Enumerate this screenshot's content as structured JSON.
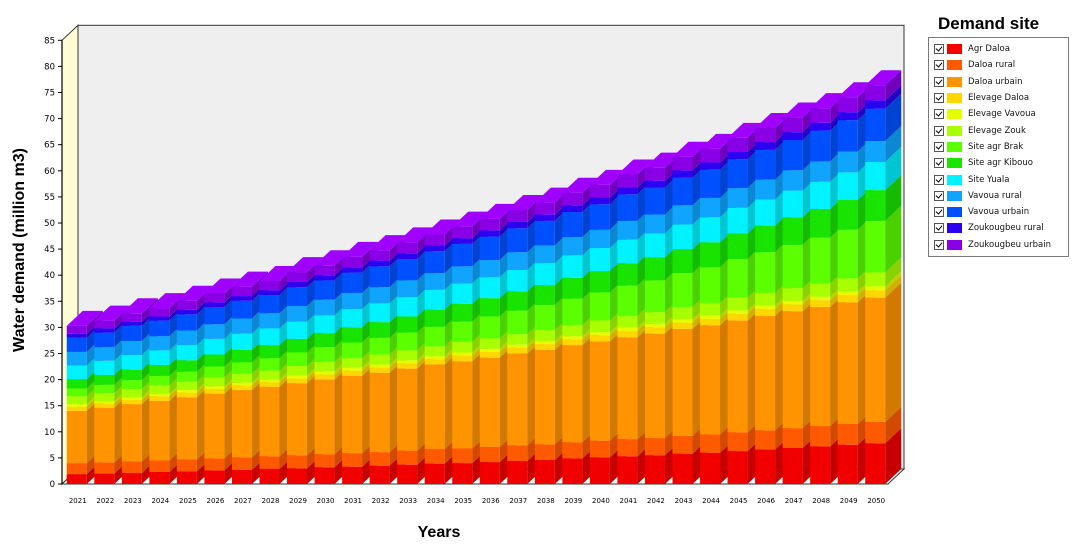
{
  "chart_data": {
    "type": "bar",
    "stacked": true,
    "three_d": true,
    "title": "",
    "xlabel": "Years",
    "ylabel": "Water demand (million m3)",
    "ylim": [
      0,
      85
    ],
    "yticks": [
      0,
      5,
      10,
      15,
      20,
      25,
      30,
      35,
      40,
      45,
      50,
      55,
      60,
      65,
      70,
      75,
      80,
      85
    ],
    "grid": false,
    "legend_title": "Demand site",
    "legend_position": "right",
    "categories": [
      "2021",
      "2022",
      "2023",
      "2024",
      "2025",
      "2026",
      "2027",
      "2028",
      "2029",
      "2030",
      "2031",
      "2032",
      "2033",
      "2034",
      "2035",
      "2036",
      "2037",
      "2038",
      "2039",
      "2040",
      "2041",
      "2042",
      "2043",
      "2044",
      "2045",
      "2046",
      "2047",
      "2048",
      "2049",
      "2050"
    ],
    "series": [
      {
        "name": "Agr Daloa",
        "color": "#f20000",
        "values": [
          1.9,
          2.0,
          2.1,
          2.3,
          2.4,
          2.6,
          2.7,
          2.9,
          3.0,
          3.2,
          3.3,
          3.5,
          3.7,
          3.9,
          4.0,
          4.2,
          4.4,
          4.6,
          4.9,
          5.1,
          5.3,
          5.5,
          5.8,
          6.0,
          6.3,
          6.6,
          6.9,
          7.2,
          7.5,
          7.8
        ]
      },
      {
        "name": "Daloa rural",
        "color": "#ff5a00",
        "values": [
          2.1,
          2.1,
          2.2,
          2.2,
          2.3,
          2.3,
          2.4,
          2.4,
          2.5,
          2.5,
          2.6,
          2.6,
          2.7,
          2.8,
          2.8,
          2.9,
          3.0,
          3.0,
          3.1,
          3.2,
          3.3,
          3.3,
          3.4,
          3.5,
          3.6,
          3.7,
          3.8,
          3.9,
          4.0,
          4.1
        ]
      },
      {
        "name": "Daloa urbain",
        "color": "#ff9400",
        "values": [
          10.0,
          10.5,
          11.0,
          11.4,
          11.9,
          12.4,
          12.9,
          13.3,
          13.8,
          14.3,
          14.8,
          15.2,
          15.7,
          16.2,
          16.7,
          17.1,
          17.6,
          18.1,
          18.6,
          19.0,
          19.5,
          20.0,
          20.5,
          20.9,
          21.4,
          21.9,
          22.4,
          22.8,
          23.3,
          23.8
        ]
      },
      {
        "name": "Elevage Daloa",
        "color": "#ffd700",
        "values": [
          0.8,
          0.8,
          0.8,
          0.9,
          0.9,
          0.9,
          0.9,
          0.9,
          0.9,
          1.0,
          1.0,
          1.0,
          1.0,
          1.0,
          1.1,
          1.1,
          1.1,
          1.1,
          1.1,
          1.2,
          1.2,
          1.2,
          1.2,
          1.2,
          1.3,
          1.3,
          1.3,
          1.3,
          1.4,
          1.4
        ]
      },
      {
        "name": "Elevage Vavoua",
        "color": "#e4ff00",
        "values": [
          0.5,
          0.5,
          0.5,
          0.5,
          0.5,
          0.5,
          0.5,
          0.5,
          0.6,
          0.6,
          0.6,
          0.6,
          0.6,
          0.6,
          0.6,
          0.6,
          0.6,
          0.6,
          0.6,
          0.6,
          0.7,
          0.7,
          0.7,
          0.7,
          0.7,
          0.7,
          0.7,
          0.7,
          0.7,
          0.8
        ]
      },
      {
        "name": "Elevage Zouk",
        "color": "#a8ff00",
        "values": [
          1.5,
          1.5,
          1.6,
          1.6,
          1.6,
          1.7,
          1.7,
          1.7,
          1.8,
          1.8,
          1.8,
          1.9,
          1.9,
          1.9,
          2.0,
          2.0,
          2.0,
          2.1,
          2.1,
          2.2,
          2.2,
          2.2,
          2.3,
          2.3,
          2.4,
          2.4,
          2.4,
          2.5,
          2.5,
          2.6
        ]
      },
      {
        "name": "Site agr Brak",
        "color": "#5cff00",
        "values": [
          1.5,
          1.6,
          1.7,
          1.8,
          1.9,
          2.1,
          2.2,
          2.4,
          2.6,
          2.8,
          3.0,
          3.2,
          3.4,
          3.7,
          3.9,
          4.2,
          4.5,
          4.8,
          5.1,
          5.4,
          5.8,
          6.1,
          6.5,
          6.9,
          7.4,
          7.8,
          8.3,
          8.8,
          9.3,
          9.9
        ]
      },
      {
        "name": "Site agr Kibouo",
        "color": "#18e400",
        "values": [
          1.8,
          1.9,
          2.0,
          2.1,
          2.2,
          2.3,
          2.4,
          2.5,
          2.6,
          2.7,
          2.9,
          3.0,
          3.1,
          3.3,
          3.4,
          3.5,
          3.7,
          3.8,
          4.0,
          4.1,
          4.3,
          4.4,
          4.6,
          4.8,
          4.9,
          5.1,
          5.3,
          5.5,
          5.7,
          5.9
        ]
      },
      {
        "name": "Site Yuala",
        "color": "#00f2ff",
        "values": [
          2.6,
          2.7,
          2.8,
          2.8,
          2.9,
          3.0,
          3.1,
          3.2,
          3.3,
          3.4,
          3.5,
          3.6,
          3.7,
          3.8,
          3.9,
          4.0,
          4.1,
          4.2,
          4.3,
          4.4,
          4.5,
          4.6,
          4.7,
          4.8,
          4.9,
          5.0,
          5.1,
          5.2,
          5.3,
          5.4
        ]
      },
      {
        "name": "Vavoua rural",
        "color": "#0fa5ff",
        "values": [
          2.6,
          2.6,
          2.7,
          2.7,
          2.8,
          2.8,
          2.9,
          2.9,
          3.0,
          3.0,
          3.1,
          3.1,
          3.2,
          3.2,
          3.3,
          3.3,
          3.4,
          3.4,
          3.5,
          3.5,
          3.6,
          3.6,
          3.7,
          3.7,
          3.8,
          3.8,
          3.9,
          3.9,
          4.0,
          4.0
        ]
      },
      {
        "name": "Vavoua urbain",
        "color": "#0050ff",
        "values": [
          2.7,
          2.8,
          2.9,
          3.0,
          3.1,
          3.3,
          3.4,
          3.5,
          3.6,
          3.7,
          3.9,
          4.0,
          4.1,
          4.2,
          4.3,
          4.5,
          4.6,
          4.7,
          4.8,
          4.9,
          5.1,
          5.2,
          5.3,
          5.4,
          5.5,
          5.7,
          5.8,
          5.9,
          6.0,
          6.2
        ]
      },
      {
        "name": "Zoukougbeu rural",
        "color": "#2c00f0",
        "values": [
          0.8,
          0.8,
          0.8,
          0.8,
          0.9,
          0.9,
          0.9,
          0.9,
          1.0,
          1.0,
          1.0,
          1.1,
          1.1,
          1.1,
          1.1,
          1.2,
          1.2,
          1.2,
          1.3,
          1.3,
          1.3,
          1.3,
          1.4,
          1.4,
          1.4,
          1.5,
          1.5,
          1.5,
          1.5,
          1.6
        ]
      },
      {
        "name": "Zoukougbeu urbain",
        "color": "#8a00e6",
        "values": [
          1.5,
          1.5,
          1.6,
          1.6,
          1.7,
          1.7,
          1.8,
          1.8,
          1.9,
          1.9,
          2.0,
          2.0,
          2.1,
          2.1,
          2.2,
          2.2,
          2.3,
          2.3,
          2.4,
          2.4,
          2.5,
          2.5,
          2.6,
          2.6,
          2.7,
          2.7,
          2.8,
          2.8,
          2.9,
          2.9
        ]
      }
    ]
  }
}
